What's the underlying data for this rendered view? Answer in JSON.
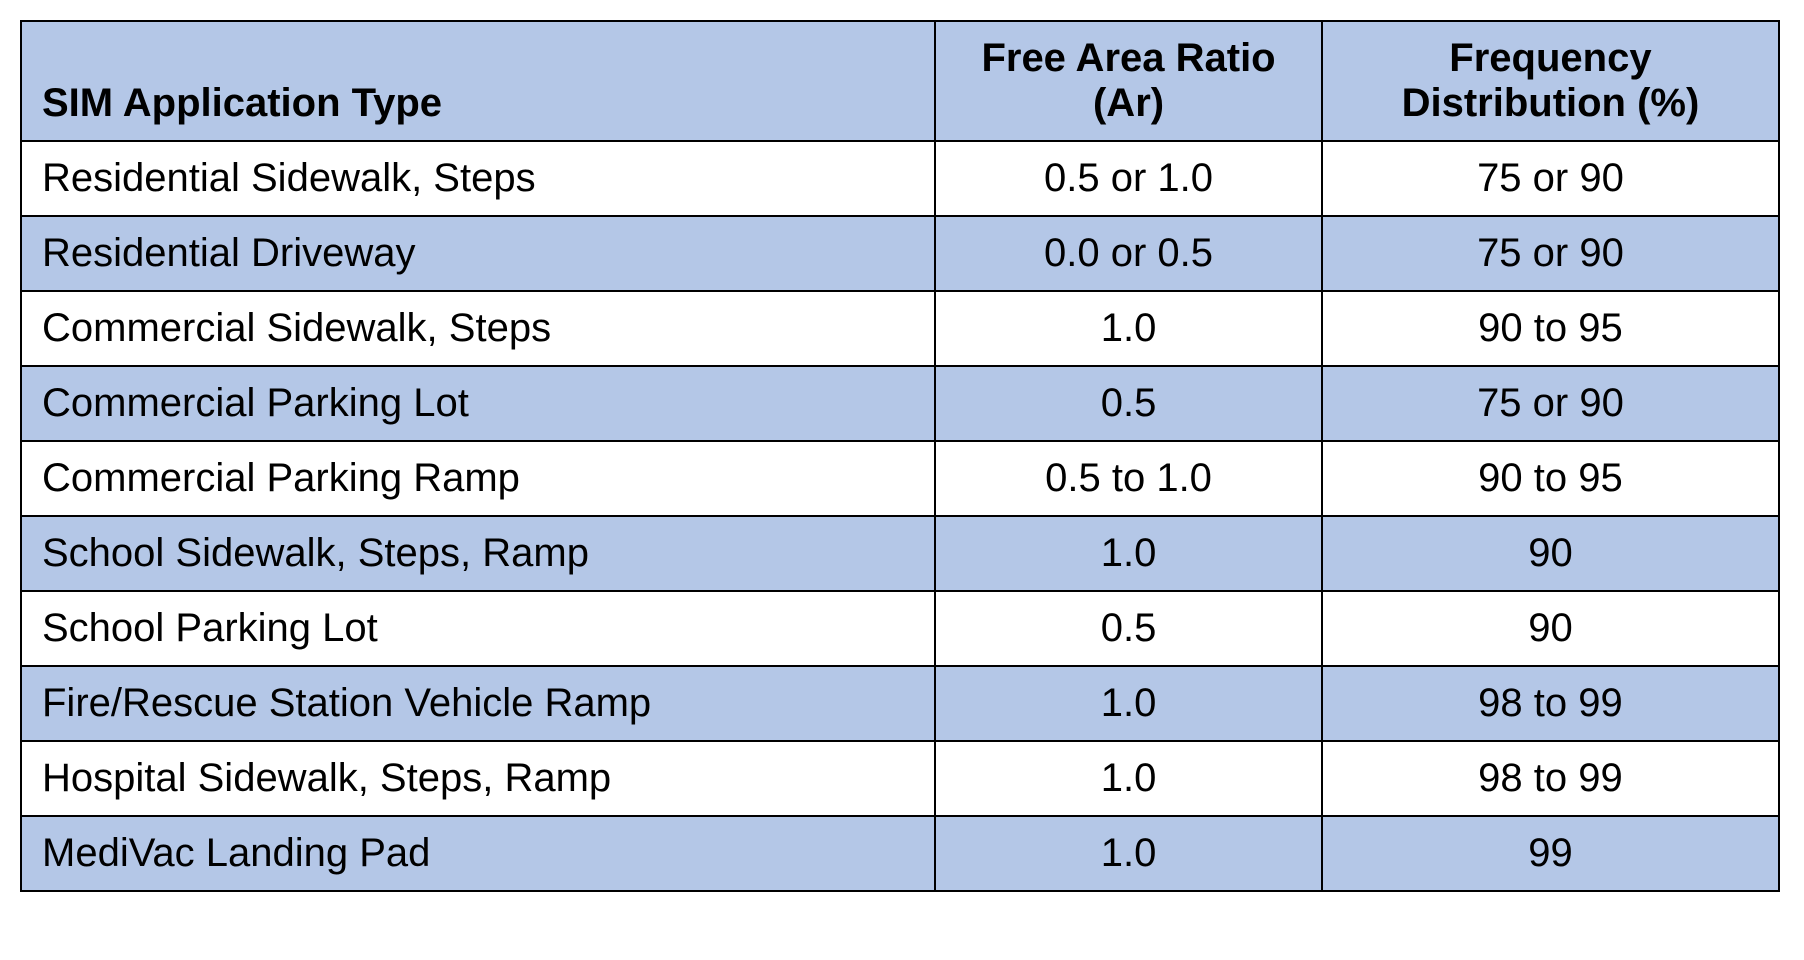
{
  "table": {
    "type": "table",
    "header_bg": "#b4c7e7",
    "row_alt_bg": "#b4c7e7",
    "row_bg": "#ffffff",
    "border_color": "#000000",
    "font_family": "Arial",
    "header_fontsize": 40,
    "body_fontsize": 40,
    "header_fontweight": "bold",
    "columns": [
      {
        "key": "type",
        "label": "SIM Application Type",
        "align": "left",
        "width_pct": 52
      },
      {
        "key": "ratio",
        "label": "Free Area Ratio (Ar)",
        "align": "center",
        "width_pct": 22
      },
      {
        "key": "freq",
        "label": "Frequency Distribution (%)",
        "align": "center",
        "width_pct": 26
      }
    ],
    "rows": [
      {
        "type": "Residential Sidewalk, Steps",
        "ratio": "0.5 or 1.0",
        "freq": "75 or 90"
      },
      {
        "type": "Residential Driveway",
        "ratio": "0.0 or 0.5",
        "freq": "75 or 90"
      },
      {
        "type": "Commercial Sidewalk, Steps",
        "ratio": "1.0",
        "freq": "90 to 95"
      },
      {
        "type": "Commercial Parking Lot",
        "ratio": "0.5",
        "freq": "75 or 90"
      },
      {
        "type": "Commercial Parking Ramp",
        "ratio": "0.5 to 1.0",
        "freq": "90 to 95"
      },
      {
        "type": "School Sidewalk, Steps, Ramp",
        "ratio": "1.0",
        "freq": "90"
      },
      {
        "type": "School Parking Lot",
        "ratio": "0.5",
        "freq": "90"
      },
      {
        "type": "Fire/Rescue Station Vehicle Ramp",
        "ratio": "1.0",
        "freq": "98 to 99"
      },
      {
        "type": "Hospital Sidewalk, Steps, Ramp",
        "ratio": "1.0",
        "freq": "98 to 99"
      },
      {
        "type": "MediVac Landing Pad",
        "ratio": "1.0",
        "freq": "99"
      }
    ]
  }
}
